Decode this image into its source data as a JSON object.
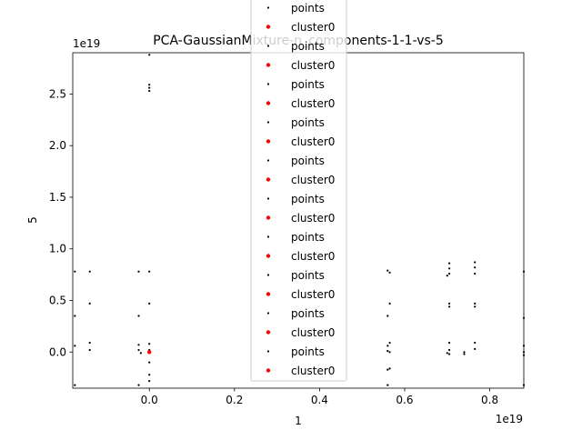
{
  "chart_data": {
    "type": "scatter",
    "title": "PCA-GaussianMixture-n_components-1-1-vs-5",
    "xlabel": "1",
    "ylabel": "5",
    "x_offset_label": "1e19",
    "y_offset_label": "1e19",
    "xlim": [
      -0.18,
      0.88
    ],
    "ylim": [
      -0.35,
      2.9
    ],
    "xticks": [
      0.0,
      0.2,
      0.4,
      0.6,
      0.8
    ],
    "xtick_labels": [
      "0.0",
      "0.2",
      "0.4",
      "0.6",
      "0.8"
    ],
    "yticks": [
      0.0,
      0.5,
      1.0,
      1.5,
      2.0,
      2.5
    ],
    "ytick_labels": [
      "0.0",
      "0.5",
      "1.0",
      "1.5",
      "2.0",
      "2.5"
    ],
    "legend_placement": "upper center (overflowing top)",
    "legend_entries": [
      "points",
      "cluster0",
      "points",
      "cluster0",
      "points",
      "cluster0",
      "points",
      "cluster0",
      "points",
      "cluster0",
      "points",
      "cluster0",
      "points",
      "cluster0",
      "points",
      "cluster0",
      "points",
      "cluster0",
      "points",
      "cluster0"
    ],
    "series": [
      {
        "name": "points",
        "color": "#000000",
        "marker": "dot",
        "points": [
          [
            0.0,
            2.88
          ],
          [
            0.0,
            2.59
          ],
          [
            0.0,
            2.56
          ],
          [
            0.0,
            2.53
          ],
          [
            -0.175,
            0.78
          ],
          [
            -0.14,
            0.78
          ],
          [
            -0.025,
            0.78
          ],
          [
            0.0,
            0.78
          ],
          [
            -0.14,
            0.47
          ],
          [
            0.0,
            0.47
          ],
          [
            -0.175,
            0.35
          ],
          [
            -0.025,
            0.35
          ],
          [
            -0.14,
            0.09
          ],
          [
            -0.14,
            0.02
          ],
          [
            -0.175,
            0.06
          ],
          [
            -0.025,
            0.07
          ],
          [
            -0.025,
            0.02
          ],
          [
            -0.02,
            -0.01
          ],
          [
            0.0,
            0.08
          ],
          [
            0.0,
            0.02
          ],
          [
            0.0,
            -0.1
          ],
          [
            0.0,
            -0.22
          ],
          [
            0.0,
            -0.28
          ],
          [
            -0.025,
            -0.32
          ],
          [
            -0.175,
            -0.32
          ],
          [
            0.56,
            0.79
          ],
          [
            0.565,
            0.77
          ],
          [
            0.565,
            0.47
          ],
          [
            0.56,
            0.35
          ],
          [
            0.565,
            0.09
          ],
          [
            0.56,
            0.06
          ],
          [
            0.56,
            0.01
          ],
          [
            0.565,
            0.0
          ],
          [
            0.565,
            -0.16
          ],
          [
            0.56,
            -0.17
          ],
          [
            0.56,
            -0.32
          ],
          [
            0.705,
            0.86
          ],
          [
            0.705,
            0.81
          ],
          [
            0.705,
            0.76
          ],
          [
            0.7,
            0.74
          ],
          [
            0.705,
            0.47
          ],
          [
            0.705,
            0.44
          ],
          [
            0.705,
            0.09
          ],
          [
            0.705,
            0.02
          ],
          [
            0.7,
            -0.01
          ],
          [
            0.705,
            -0.02
          ],
          [
            0.74,
            0.0
          ],
          [
            0.74,
            -0.02
          ],
          [
            0.765,
            0.87
          ],
          [
            0.765,
            0.82
          ],
          [
            0.765,
            0.76
          ],
          [
            0.765,
            0.47
          ],
          [
            0.765,
            0.44
          ],
          [
            0.765,
            0.09
          ],
          [
            0.765,
            0.03
          ],
          [
            0.88,
            0.78
          ],
          [
            0.88,
            0.33
          ],
          [
            0.88,
            0.06
          ],
          [
            0.88,
            0.0
          ],
          [
            0.88,
            -0.03
          ],
          [
            0.88,
            -0.32
          ]
        ]
      },
      {
        "name": "cluster0",
        "color": "#ff0000",
        "marker": "dot",
        "points": [
          [
            0.0,
            0.0
          ]
        ]
      }
    ]
  }
}
